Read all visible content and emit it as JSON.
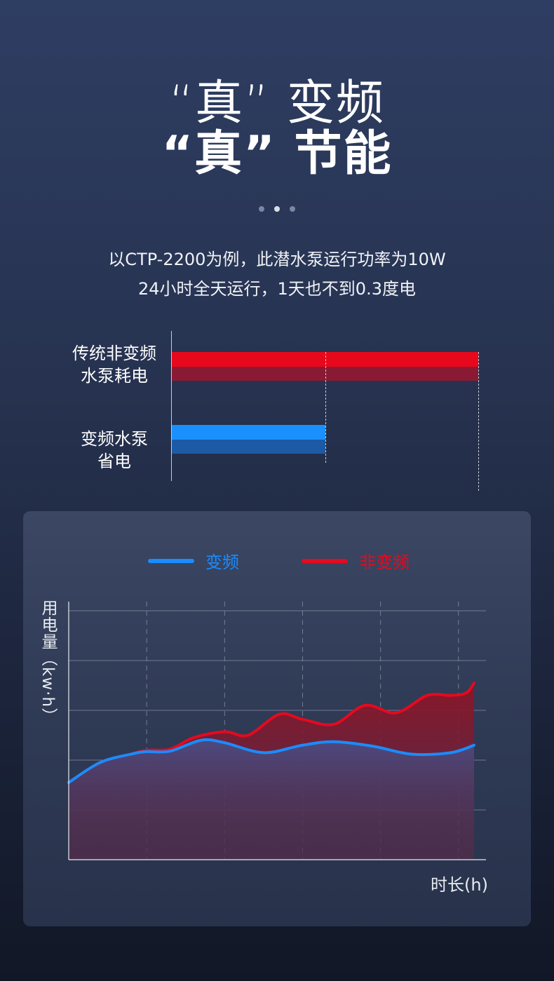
{
  "heading": {
    "line1": "“真” 变频",
    "line2": "“真” 节能"
  },
  "pager": {
    "count": 3,
    "active": 1
  },
  "description": {
    "line1": "以CTP-2200为例，此潜水泵运行功率为10W",
    "line2": "24小时全天运行，1天也不到0.3度电"
  },
  "comparison": {
    "items": [
      {
        "label_line1": "传统非变频",
        "label_line2": "水泵耗电",
        "value": 2,
        "color_top": "#e8081c",
        "color_bottom": "#8a1a33"
      },
      {
        "label_line1": "变频水泵",
        "label_line2": "省电",
        "value": 1,
        "color_top": "#1a90ff",
        "color_bottom": "#1c5aa5"
      }
    ]
  },
  "chart_data": {
    "type": "area",
    "legend": [
      {
        "name": "变频",
        "color": "#1a8cff"
      },
      {
        "name": "非变频",
        "color": "#e40a1f"
      }
    ],
    "ylabel": "用电量（kw·h）",
    "xlabel": "时长(h)",
    "ylim": [
      0,
      5
    ],
    "xlim": [
      0,
      5.2
    ],
    "grid": {
      "horizontal": true,
      "vertical_dashed": true
    },
    "x_grid": [
      1,
      2,
      3,
      4,
      5
    ],
    "y_grid": [
      1,
      2,
      3,
      4,
      5
    ],
    "series": [
      {
        "name": "变频",
        "x": [
          0,
          0.4,
          0.8,
          1.0,
          1.3,
          1.7,
          2.0,
          2.5,
          3.0,
          3.4,
          3.9,
          4.4,
          4.9,
          5.2
        ],
        "values": [
          1.55,
          1.95,
          2.12,
          2.17,
          2.18,
          2.4,
          2.35,
          2.15,
          2.3,
          2.37,
          2.28,
          2.12,
          2.15,
          2.3
        ]
      },
      {
        "name": "非变频",
        "x": [
          0,
          0.4,
          0.8,
          1.0,
          1.3,
          1.6,
          2.0,
          2.3,
          2.7,
          3.0,
          3.4,
          3.8,
          4.2,
          4.6,
          4.9,
          5.1,
          5.2
        ],
        "values": [
          1.55,
          1.95,
          2.12,
          2.2,
          2.22,
          2.45,
          2.57,
          2.5,
          2.92,
          2.82,
          2.72,
          3.1,
          2.95,
          3.3,
          3.3,
          3.35,
          3.55
        ]
      }
    ]
  }
}
